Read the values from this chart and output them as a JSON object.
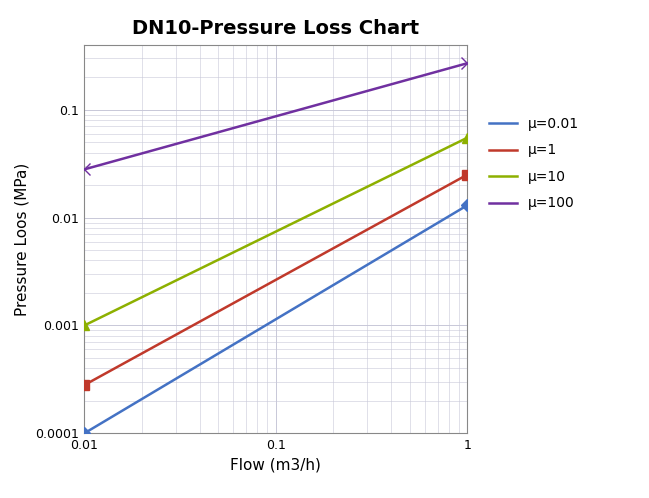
{
  "title": "DN10-Pressure Loss Chart",
  "xlabel": "Flow (m3/h)",
  "ylabel": "Pressure Loos (MPa)",
  "xlim": [
    0.01,
    1.0
  ],
  "ylim": [
    0.0001,
    0.4
  ],
  "series": [
    {
      "label": "μ=0.01",
      "color": "#4472C4",
      "marker": "D",
      "markersize": 6,
      "x": [
        0.01,
        1.0
      ],
      "y": [
        0.0001,
        0.013
      ]
    },
    {
      "label": "μ=1",
      "color": "#C0392B",
      "marker": "s",
      "markersize": 7,
      "x": [
        0.01,
        1.0
      ],
      "y": [
        0.00028,
        0.025
      ]
    },
    {
      "label": "μ=10",
      "color": "#8DB000",
      "marker": "^",
      "markersize": 7,
      "x": [
        0.01,
        1.0
      ],
      "y": [
        0.001,
        0.055
      ]
    },
    {
      "label": "μ=100",
      "color": "#7030A0",
      "marker": "x",
      "markersize": 8,
      "x": [
        0.01,
        1.0
      ],
      "y": [
        0.028,
        0.27
      ]
    }
  ],
  "background_color": "#FFFFFF",
  "grid_color": "#C8C8D8",
  "title_fontsize": 14,
  "label_fontsize": 11,
  "tick_fontsize": 9,
  "legend_fontsize": 10,
  "linewidth": 1.8
}
